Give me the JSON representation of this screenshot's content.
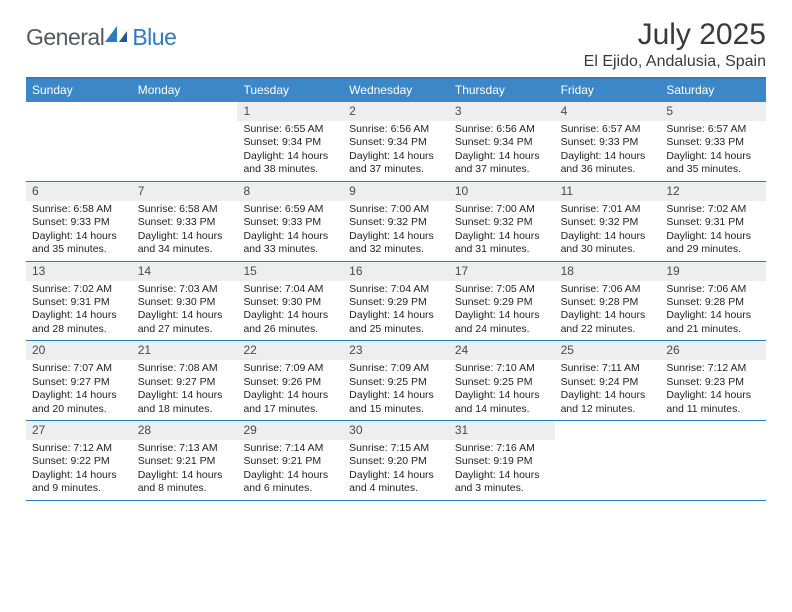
{
  "brand": {
    "word1": "General",
    "word2": "Blue"
  },
  "title": "July 2025",
  "location": "El Ejido, Andalusia, Spain",
  "header_bg": "#3b87c8",
  "rule_color": "#2f7bbf",
  "daynum_bg": "#eceeef",
  "day_names": [
    "Sunday",
    "Monday",
    "Tuesday",
    "Wednesday",
    "Thursday",
    "Friday",
    "Saturday"
  ],
  "weeks": [
    [
      {
        "n": "",
        "sr": "",
        "ss": "",
        "dl": ""
      },
      {
        "n": "",
        "sr": "",
        "ss": "",
        "dl": ""
      },
      {
        "n": "1",
        "sr": "Sunrise: 6:55 AM",
        "ss": "Sunset: 9:34 PM",
        "dl": "Daylight: 14 hours and 38 minutes."
      },
      {
        "n": "2",
        "sr": "Sunrise: 6:56 AM",
        "ss": "Sunset: 9:34 PM",
        "dl": "Daylight: 14 hours and 37 minutes."
      },
      {
        "n": "3",
        "sr": "Sunrise: 6:56 AM",
        "ss": "Sunset: 9:34 PM",
        "dl": "Daylight: 14 hours and 37 minutes."
      },
      {
        "n": "4",
        "sr": "Sunrise: 6:57 AM",
        "ss": "Sunset: 9:33 PM",
        "dl": "Daylight: 14 hours and 36 minutes."
      },
      {
        "n": "5",
        "sr": "Sunrise: 6:57 AM",
        "ss": "Sunset: 9:33 PM",
        "dl": "Daylight: 14 hours and 35 minutes."
      }
    ],
    [
      {
        "n": "6",
        "sr": "Sunrise: 6:58 AM",
        "ss": "Sunset: 9:33 PM",
        "dl": "Daylight: 14 hours and 35 minutes."
      },
      {
        "n": "7",
        "sr": "Sunrise: 6:58 AM",
        "ss": "Sunset: 9:33 PM",
        "dl": "Daylight: 14 hours and 34 minutes."
      },
      {
        "n": "8",
        "sr": "Sunrise: 6:59 AM",
        "ss": "Sunset: 9:33 PM",
        "dl": "Daylight: 14 hours and 33 minutes."
      },
      {
        "n": "9",
        "sr": "Sunrise: 7:00 AM",
        "ss": "Sunset: 9:32 PM",
        "dl": "Daylight: 14 hours and 32 minutes."
      },
      {
        "n": "10",
        "sr": "Sunrise: 7:00 AM",
        "ss": "Sunset: 9:32 PM",
        "dl": "Daylight: 14 hours and 31 minutes."
      },
      {
        "n": "11",
        "sr": "Sunrise: 7:01 AM",
        "ss": "Sunset: 9:32 PM",
        "dl": "Daylight: 14 hours and 30 minutes."
      },
      {
        "n": "12",
        "sr": "Sunrise: 7:02 AM",
        "ss": "Sunset: 9:31 PM",
        "dl": "Daylight: 14 hours and 29 minutes."
      }
    ],
    [
      {
        "n": "13",
        "sr": "Sunrise: 7:02 AM",
        "ss": "Sunset: 9:31 PM",
        "dl": "Daylight: 14 hours and 28 minutes."
      },
      {
        "n": "14",
        "sr": "Sunrise: 7:03 AM",
        "ss": "Sunset: 9:30 PM",
        "dl": "Daylight: 14 hours and 27 minutes."
      },
      {
        "n": "15",
        "sr": "Sunrise: 7:04 AM",
        "ss": "Sunset: 9:30 PM",
        "dl": "Daylight: 14 hours and 26 minutes."
      },
      {
        "n": "16",
        "sr": "Sunrise: 7:04 AM",
        "ss": "Sunset: 9:29 PM",
        "dl": "Daylight: 14 hours and 25 minutes."
      },
      {
        "n": "17",
        "sr": "Sunrise: 7:05 AM",
        "ss": "Sunset: 9:29 PM",
        "dl": "Daylight: 14 hours and 24 minutes."
      },
      {
        "n": "18",
        "sr": "Sunrise: 7:06 AM",
        "ss": "Sunset: 9:28 PM",
        "dl": "Daylight: 14 hours and 22 minutes."
      },
      {
        "n": "19",
        "sr": "Sunrise: 7:06 AM",
        "ss": "Sunset: 9:28 PM",
        "dl": "Daylight: 14 hours and 21 minutes."
      }
    ],
    [
      {
        "n": "20",
        "sr": "Sunrise: 7:07 AM",
        "ss": "Sunset: 9:27 PM",
        "dl": "Daylight: 14 hours and 20 minutes."
      },
      {
        "n": "21",
        "sr": "Sunrise: 7:08 AM",
        "ss": "Sunset: 9:27 PM",
        "dl": "Daylight: 14 hours and 18 minutes."
      },
      {
        "n": "22",
        "sr": "Sunrise: 7:09 AM",
        "ss": "Sunset: 9:26 PM",
        "dl": "Daylight: 14 hours and 17 minutes."
      },
      {
        "n": "23",
        "sr": "Sunrise: 7:09 AM",
        "ss": "Sunset: 9:25 PM",
        "dl": "Daylight: 14 hours and 15 minutes."
      },
      {
        "n": "24",
        "sr": "Sunrise: 7:10 AM",
        "ss": "Sunset: 9:25 PM",
        "dl": "Daylight: 14 hours and 14 minutes."
      },
      {
        "n": "25",
        "sr": "Sunrise: 7:11 AM",
        "ss": "Sunset: 9:24 PM",
        "dl": "Daylight: 14 hours and 12 minutes."
      },
      {
        "n": "26",
        "sr": "Sunrise: 7:12 AM",
        "ss": "Sunset: 9:23 PM",
        "dl": "Daylight: 14 hours and 11 minutes."
      }
    ],
    [
      {
        "n": "27",
        "sr": "Sunrise: 7:12 AM",
        "ss": "Sunset: 9:22 PM",
        "dl": "Daylight: 14 hours and 9 minutes."
      },
      {
        "n": "28",
        "sr": "Sunrise: 7:13 AM",
        "ss": "Sunset: 9:21 PM",
        "dl": "Daylight: 14 hours and 8 minutes."
      },
      {
        "n": "29",
        "sr": "Sunrise: 7:14 AM",
        "ss": "Sunset: 9:21 PM",
        "dl": "Daylight: 14 hours and 6 minutes."
      },
      {
        "n": "30",
        "sr": "Sunrise: 7:15 AM",
        "ss": "Sunset: 9:20 PM",
        "dl": "Daylight: 14 hours and 4 minutes."
      },
      {
        "n": "31",
        "sr": "Sunrise: 7:16 AM",
        "ss": "Sunset: 9:19 PM",
        "dl": "Daylight: 14 hours and 3 minutes."
      },
      {
        "n": "",
        "sr": "",
        "ss": "",
        "dl": ""
      },
      {
        "n": "",
        "sr": "",
        "ss": "",
        "dl": ""
      }
    ]
  ]
}
